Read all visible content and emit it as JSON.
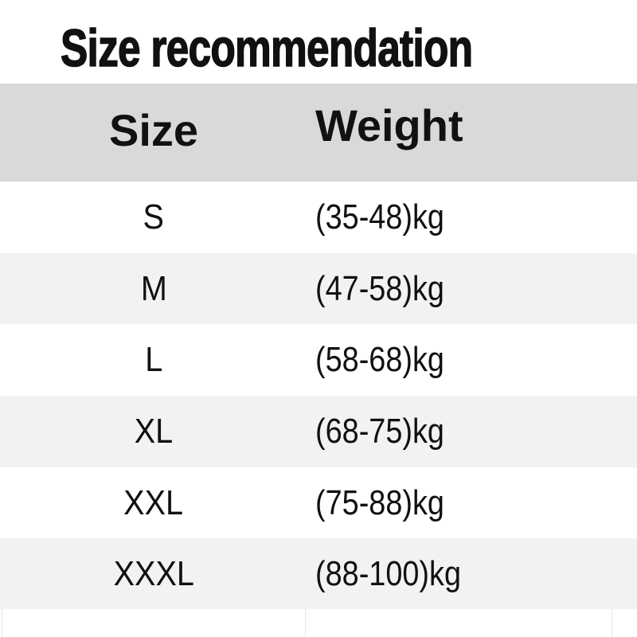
{
  "title": "Size recommendation",
  "table": {
    "headers": [
      "Size",
      "Weight"
    ],
    "rows": [
      {
        "size": "S",
        "weight": "(35-48)kg"
      },
      {
        "size": "M",
        "weight": "(47-58)kg"
      },
      {
        "size": "L",
        "weight": "(58-68)kg"
      },
      {
        "size": "XL",
        "weight": "(68-75)kg"
      },
      {
        "size": "XXL",
        "weight": "(75-88)kg"
      },
      {
        "size": "XXXL",
        "weight": "(88-100)kg"
      }
    ]
  },
  "colors": {
    "header_bg": "#d9d9d9",
    "stripe_bg": "#f2f2f2",
    "row_bg": "#ffffff"
  }
}
